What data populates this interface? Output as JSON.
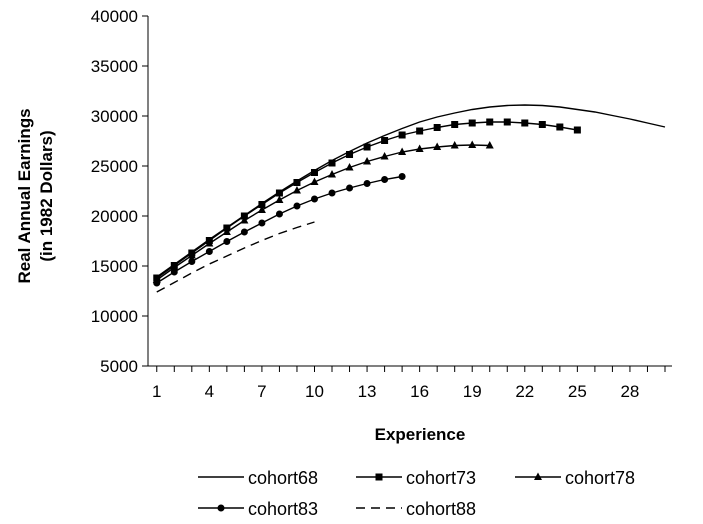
{
  "chart_data": {
    "type": "line",
    "title": "",
    "xlabel": "Experience",
    "ylabel_lines": [
      "Real Annual Earnings",
      "(in 1982 Dollars)"
    ],
    "xlim": [
      0.5,
      30.4
    ],
    "ylim": [
      5000,
      40000
    ],
    "xticks": [
      1,
      4,
      7,
      10,
      13,
      16,
      19,
      22,
      25,
      28
    ],
    "yticks": [
      5000,
      10000,
      15000,
      20000,
      25000,
      30000,
      35000,
      40000
    ],
    "grid": false,
    "legend": "bottom",
    "series": [
      {
        "name": "cohort68",
        "marker": "none",
        "dash": "solid",
        "x": [
          1,
          2,
          3,
          4,
          5,
          6,
          7,
          8,
          9,
          10,
          11,
          12,
          13,
          14,
          15,
          16,
          17,
          18,
          19,
          20,
          21,
          22,
          23,
          24,
          25,
          26,
          27,
          28,
          29,
          30
        ],
        "values": [
          13900,
          15150,
          16400,
          17650,
          18850,
          20050,
          21250,
          22400,
          23500,
          24550,
          25550,
          26450,
          27300,
          28050,
          28750,
          29400,
          29900,
          30300,
          30650,
          30900,
          31050,
          31100,
          31050,
          30900,
          30650,
          30400,
          30050,
          29700,
          29300,
          28900
        ]
      },
      {
        "name": "cohort73",
        "marker": "square",
        "dash": "solid",
        "x": [
          1,
          2,
          3,
          4,
          5,
          6,
          7,
          8,
          9,
          10,
          11,
          12,
          13,
          14,
          15,
          16,
          17,
          18,
          19,
          20,
          21,
          22,
          23,
          24,
          25
        ],
        "values": [
          13800,
          15050,
          16300,
          17550,
          18800,
          20000,
          21150,
          22300,
          23350,
          24350,
          25300,
          26150,
          26900,
          27550,
          28100,
          28500,
          28850,
          29150,
          29300,
          29400,
          29400,
          29300,
          29150,
          28900,
          28600
        ]
      },
      {
        "name": "cohort78",
        "marker": "triangle",
        "dash": "solid",
        "x": [
          1,
          2,
          3,
          4,
          5,
          6,
          7,
          8,
          9,
          10,
          11,
          12,
          13,
          14,
          15,
          16,
          17,
          18,
          19,
          20
        ],
        "values": [
          13600,
          14850,
          16050,
          17250,
          18400,
          19550,
          20600,
          21600,
          22550,
          23400,
          24150,
          24850,
          25450,
          25950,
          26400,
          26700,
          26900,
          27050,
          27100,
          27050
        ]
      },
      {
        "name": "cohort83",
        "marker": "circle",
        "dash": "solid",
        "x": [
          1,
          2,
          3,
          4,
          5,
          6,
          7,
          8,
          9,
          10,
          11,
          12,
          13,
          14,
          15
        ],
        "values": [
          13300,
          14400,
          15450,
          16450,
          17450,
          18400,
          19300,
          20200,
          21000,
          21700,
          22300,
          22800,
          23250,
          23650,
          23950
        ]
      },
      {
        "name": "cohort88",
        "marker": "none",
        "dash": "dashed",
        "x": [
          1,
          2,
          3,
          4,
          5,
          6,
          7,
          8,
          9,
          10
        ],
        "values": [
          12400,
          13350,
          14300,
          15200,
          16000,
          16800,
          17550,
          18250,
          18850,
          19400
        ]
      }
    ]
  }
}
